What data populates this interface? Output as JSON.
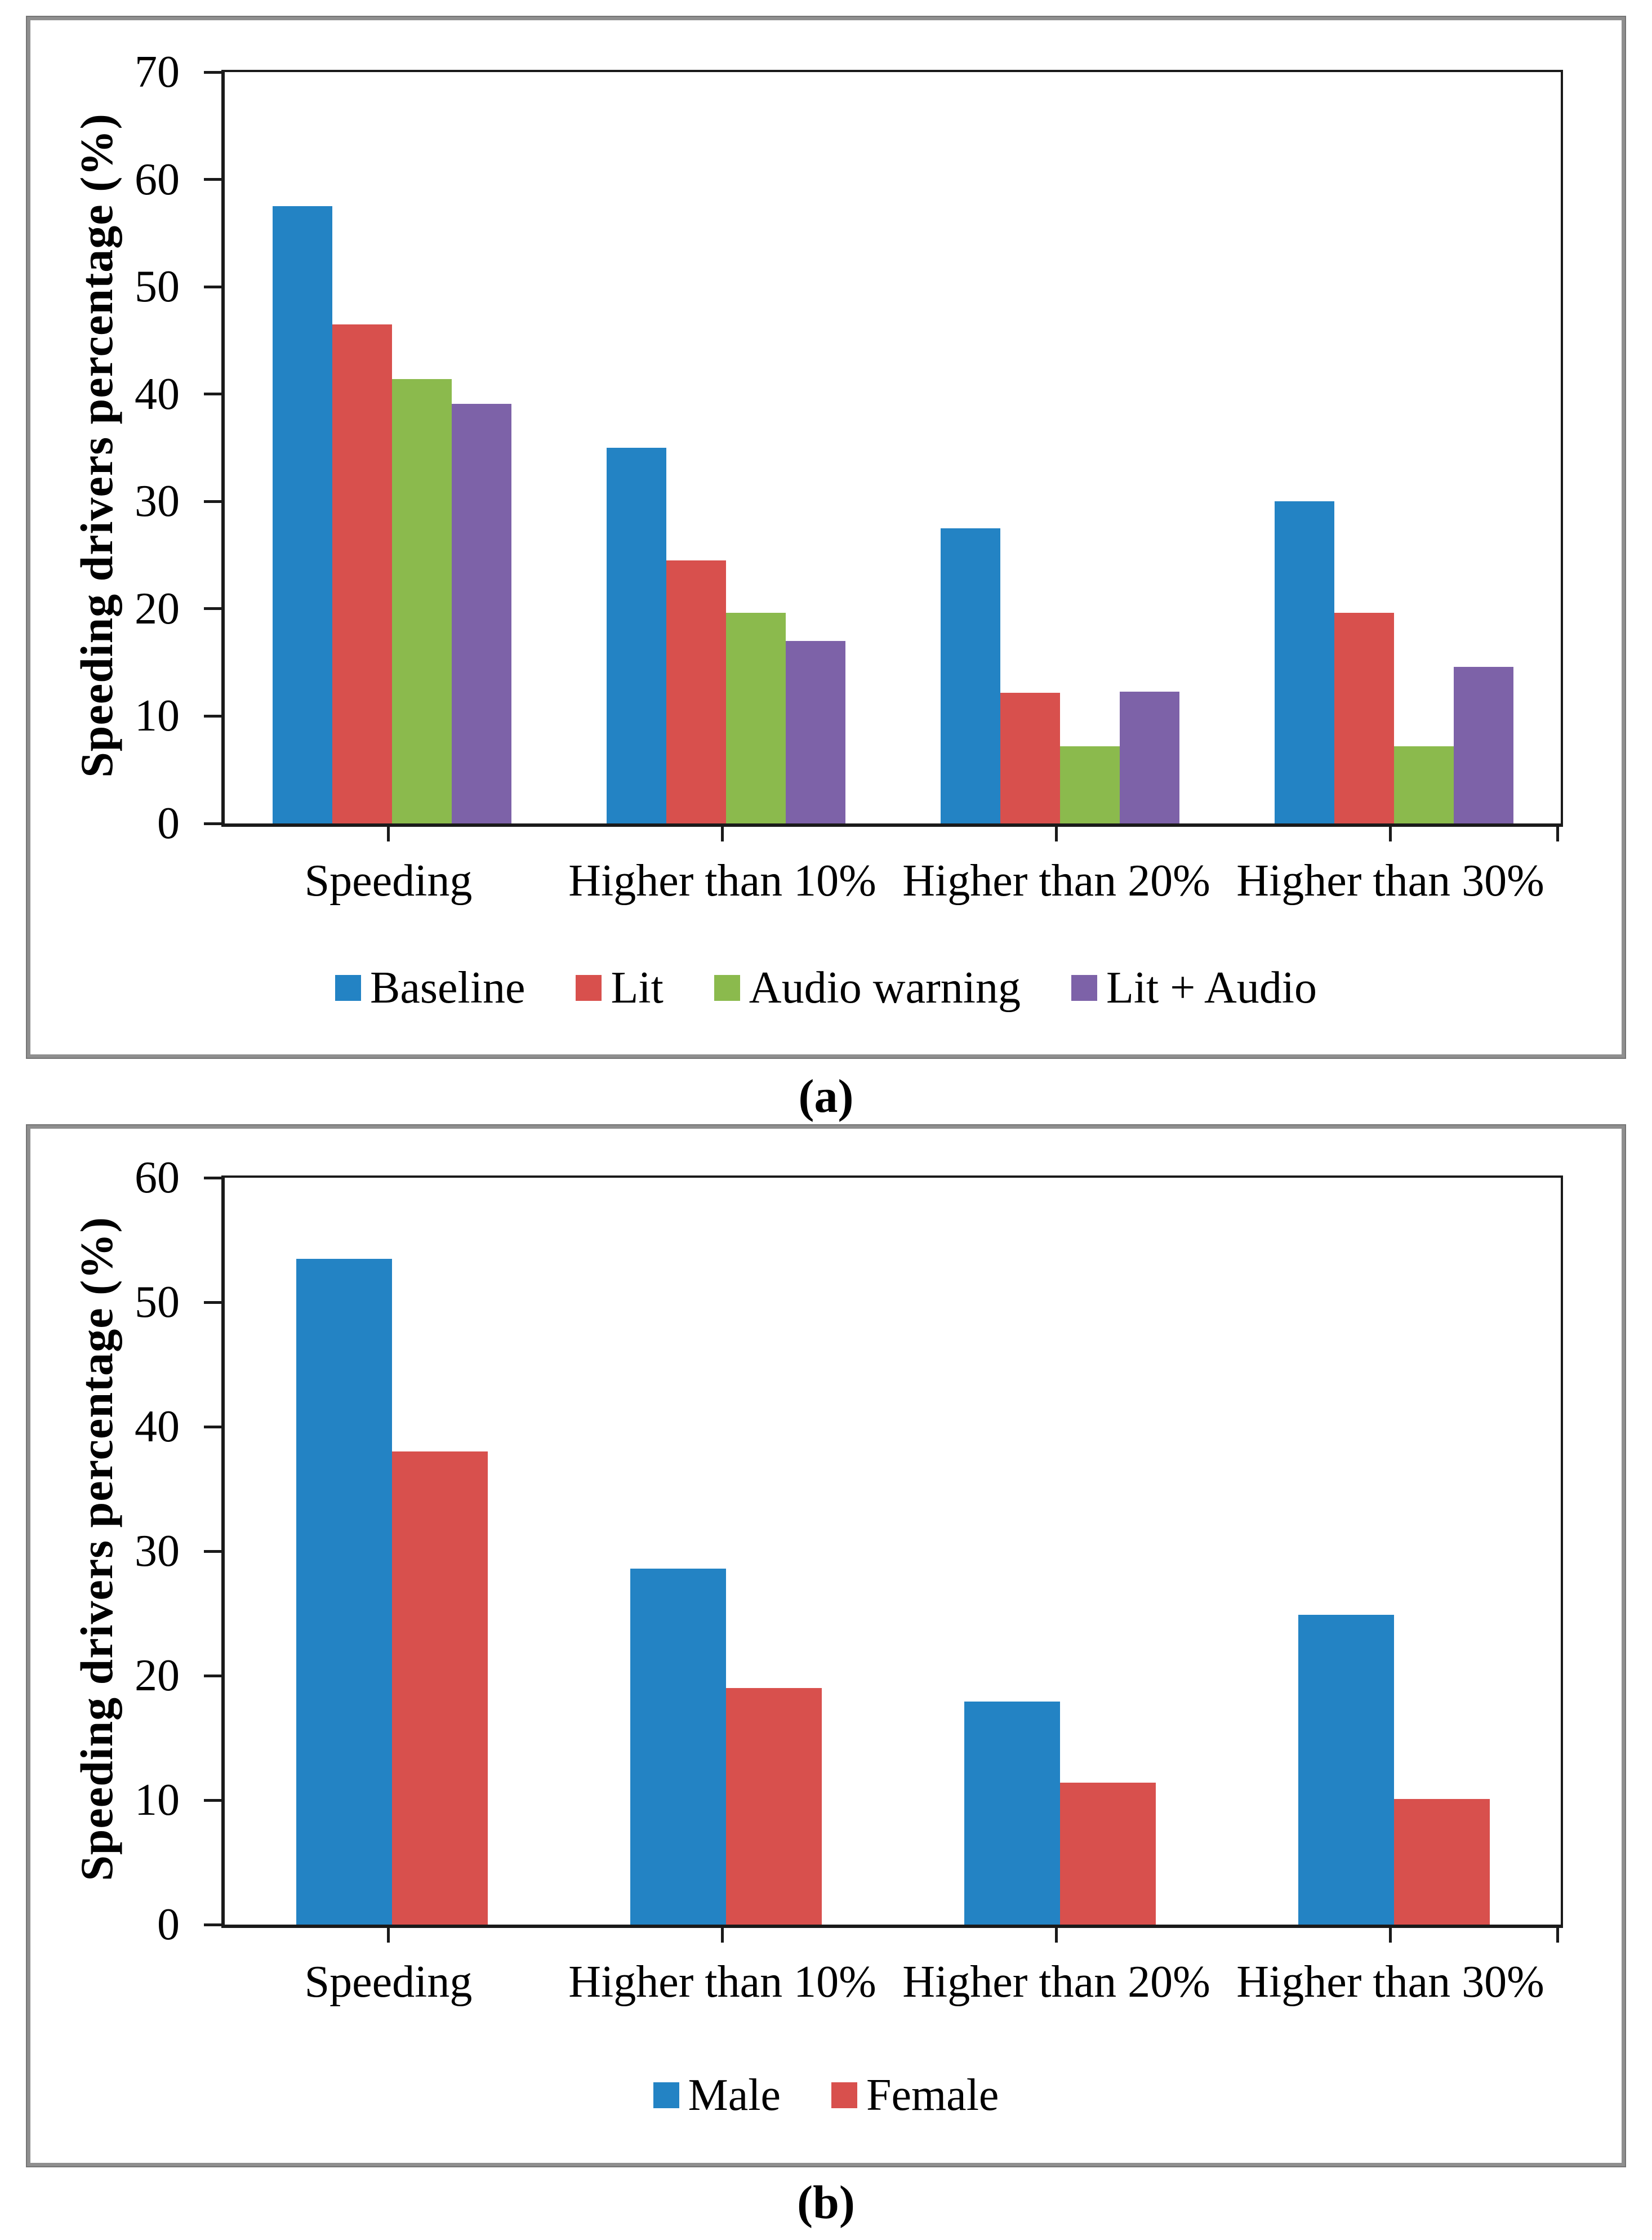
{
  "figure": {
    "description": "Two stacked grouped bar charts of speeding drivers percentage",
    "captions": [
      "(a)",
      "(b)"
    ]
  },
  "chart_data": [
    {
      "type": "bar",
      "caption": "(a)",
      "title": "",
      "xlabel": "",
      "ylabel": "Speeding drivers percentage (%)",
      "ylim": [
        0,
        70
      ],
      "ytick_step": 10,
      "yticks": [
        70,
        60,
        50,
        40,
        30,
        20,
        10,
        0
      ],
      "grid": false,
      "legend_position": "bottom",
      "categories": [
        "Speeding",
        "Higher than 10%",
        "Higher than 20%",
        "Higher than 30%"
      ],
      "series": [
        {
          "name": "Baseline",
          "color": "#2383C4",
          "values": [
            57.5,
            35.0,
            27.5,
            30.0
          ]
        },
        {
          "name": "Lit",
          "color": "#D8504D",
          "values": [
            46.5,
            24.5,
            12.2,
            19.6
          ]
        },
        {
          "name": "Audio warning",
          "color": "#8BBA4D",
          "values": [
            41.4,
            19.6,
            7.2,
            7.2
          ]
        },
        {
          "name": "Lit + Audio",
          "color": "#7D62A8",
          "values": [
            39.1,
            17.0,
            12.3,
            14.6
          ]
        }
      ]
    },
    {
      "type": "bar",
      "caption": "(b)",
      "title": "",
      "xlabel": "",
      "ylabel": "Speeding drivers percentage (%)",
      "ylim": [
        0,
        60
      ],
      "ytick_step": 10,
      "yticks": [
        60,
        50,
        40,
        30,
        20,
        10,
        0
      ],
      "grid": false,
      "legend_position": "bottom",
      "categories": [
        "Speeding",
        "Higher than 10%",
        "Higher than 20%",
        "Higher than 30%"
      ],
      "series": [
        {
          "name": "Male",
          "color": "#2383C4",
          "values": [
            53.5,
            28.6,
            17.9,
            24.9
          ]
        },
        {
          "name": "Female",
          "color": "#D8504D",
          "values": [
            38.0,
            19.0,
            11.4,
            10.1
          ]
        }
      ]
    }
  ]
}
